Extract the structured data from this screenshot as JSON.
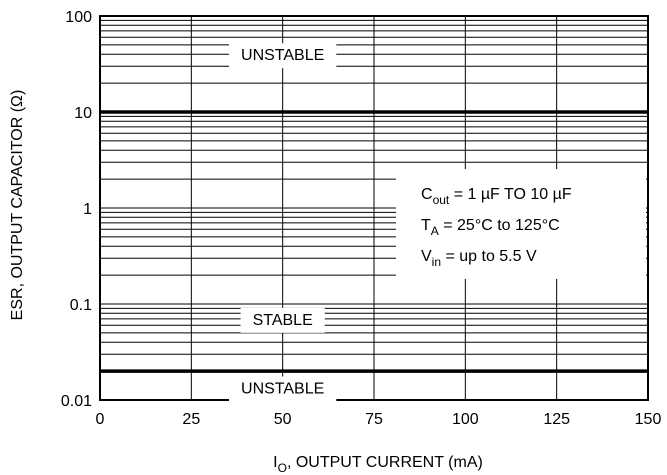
{
  "chart_data": {
    "type": "line",
    "xlabel": {
      "main": "I",
      "sub": "O",
      "rest": ", OUTPUT CURRENT (mA)"
    },
    "ylabel": "ESR, OUTPUT CAPACITOR (Ω)",
    "x_ticks": [
      "0",
      "25",
      "50",
      "75",
      "100",
      "125",
      "150"
    ],
    "y_ticks": [
      "100",
      "10",
      "1",
      "0.1",
      "0.01"
    ],
    "xlim": [
      0,
      150
    ],
    "ylim": [
      0.01,
      100
    ],
    "y_scale": "log",
    "grid": true,
    "series": [
      {
        "x": [
          0,
          150
        ],
        "values": [
          10,
          10
        ]
      },
      {
        "x": [
          0,
          150
        ],
        "values": [
          0.02,
          0.02
        ]
      }
    ],
    "regions": [
      {
        "label": "UNSTABLE",
        "x": 50,
        "y": 40
      },
      {
        "label": "STABLE",
        "x": 50,
        "y": 0.07
      },
      {
        "label": "UNSTABLE",
        "x": 50,
        "y": 0.0135
      }
    ],
    "conditions": [
      {
        "main": "C",
        "sub": "out",
        "rest": " = 1 µF TO 10 µF"
      },
      {
        "main": "T",
        "sub": "A",
        "rest": " = 25°C to 125°C"
      },
      {
        "main": "V",
        "sub": "in",
        "rest": " = up to 5.5 V"
      }
    ]
  }
}
